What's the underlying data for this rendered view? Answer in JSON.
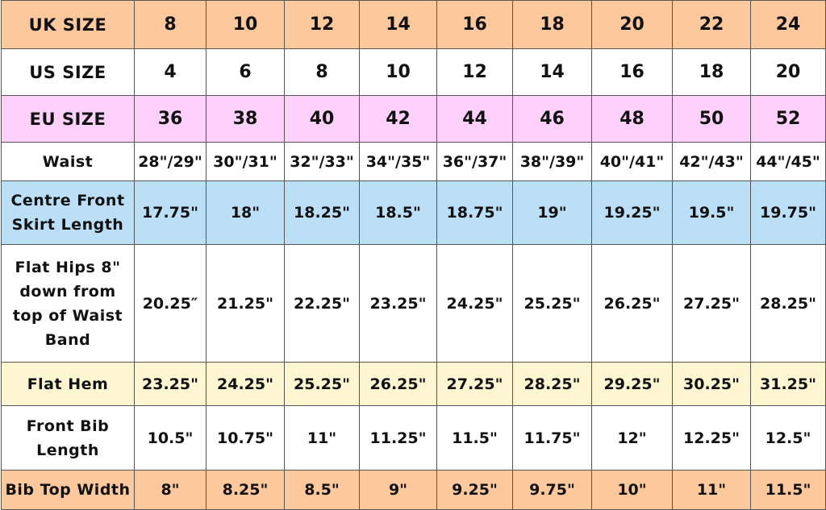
{
  "colors": {
    "orange": "#fdc99c",
    "pink": "#fdd1fb",
    "blue": "#badff6",
    "yellow": "#fdf6d0",
    "white": "#ffffff"
  },
  "rows": [
    {
      "label": "UK SIZE",
      "color": "orange",
      "big": true,
      "values": [
        "8",
        "10",
        "12",
        "14",
        "16",
        "18",
        "20",
        "22",
        "24"
      ]
    },
    {
      "label": "US SIZE",
      "color": "white",
      "big": true,
      "values": [
        "4",
        "6",
        "8",
        "10",
        "12",
        "14",
        "16",
        "18",
        "20"
      ]
    },
    {
      "label": "EU SIZE",
      "color": "pink",
      "big": true,
      "values": [
        "36",
        "38",
        "40",
        "42",
        "44",
        "46",
        "48",
        "50",
        "52"
      ]
    },
    {
      "label": "Waist",
      "color": "white",
      "values": [
        "28\"/29\"",
        "30\"/31\"",
        "32\"/33\"",
        "34\"/35\"",
        "36\"/37\"",
        "38\"/39\"",
        "40\"/41\"",
        "42\"/43\"",
        "44\"/45\""
      ]
    },
    {
      "label": "Centre Front Skirt Length",
      "color": "blue",
      "values": [
        "17.75\"",
        "18\"",
        "18.25\"",
        "18.5\"",
        "18.75\"",
        "19\"",
        "19.25\"",
        "19.5\"",
        "19.75\""
      ]
    },
    {
      "label": "Flat Hips 8\" down from top of Waist Band",
      "color": "white",
      "values": [
        "20.25″",
        "21.25\"",
        "22.25\"",
        "23.25\"",
        "24.25\"",
        "25.25\"",
        "26.25\"",
        "27.25\"",
        "28.25\""
      ]
    },
    {
      "label": "Flat Hem",
      "color": "yellow",
      "values": [
        "23.25\"",
        "24.25\"",
        "25.25\"",
        "26.25\"",
        "27.25\"",
        "28.25\"",
        "29.25\"",
        "30.25\"",
        "31.25\""
      ]
    },
    {
      "label": "Front Bib Length",
      "color": "white",
      "values": [
        "10.5\"",
        "10.75\"",
        "11\"",
        "11.25\"",
        "11.5\"",
        "11.75\"",
        "12\"",
        "12.25\"",
        "12.5\""
      ]
    },
    {
      "label": "Bib Top Width",
      "color": "orange",
      "values": [
        "8\"",
        "8.25\"",
        "8.5\"",
        "9\"",
        "9.25\"",
        "9.75\"",
        "10\"",
        "11\"",
        "11.5\""
      ]
    }
  ]
}
